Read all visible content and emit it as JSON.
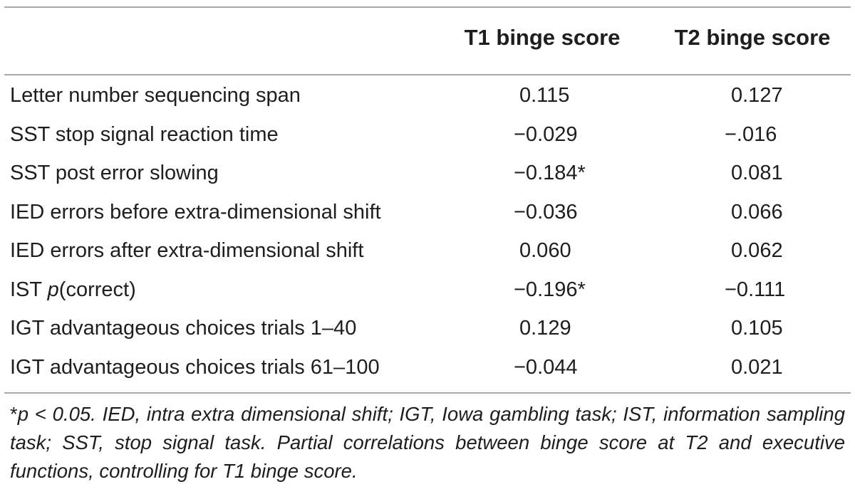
{
  "table": {
    "headers": {
      "label": "",
      "t1": "T1 binge score",
      "t2": "T2 binge score"
    },
    "rows": [
      {
        "label_pre": "Letter number sequencing span",
        "label_italic": "",
        "label_post": "",
        "t1": "0.115",
        "t2": "0.127"
      },
      {
        "label_pre": "SST stop signal reaction time",
        "label_italic": "",
        "label_post": "",
        "t1": "−0.029",
        "t2": "−.016"
      },
      {
        "label_pre": "SST post error slowing",
        "label_italic": "",
        "label_post": "",
        "t1": "−0.184*",
        "t2": "0.081"
      },
      {
        "label_pre": "IED errors before extra-dimensional shift",
        "label_italic": "",
        "label_post": "",
        "t1": "−0.036",
        "t2": "0.066"
      },
      {
        "label_pre": "IED errors after extra-dimensional shift",
        "label_italic": "",
        "label_post": "",
        "t1": "0.060",
        "t2": "0.062"
      },
      {
        "label_pre": "IST ",
        "label_italic": "p",
        "label_post": "(correct)",
        "t1": "−0.196*",
        "t2": "−0.111"
      },
      {
        "label_pre": "IGT advantageous choices trials 1–40",
        "label_italic": "",
        "label_post": "",
        "t1": "0.129",
        "t2": "0.105"
      },
      {
        "label_pre": "IGT advantageous choices trials 61–100",
        "label_italic": "",
        "label_post": "",
        "t1": "−0.044",
        "t2": "0.021"
      }
    ]
  },
  "footnote": {
    "asterisk": "*",
    "text": "p < 0.05. IED, intra extra dimensional shift; IGT, Iowa gambling task; IST, information sampling task; SST, stop signal task. Partial correlations between binge score at T2 and executive functions, controlling for T1 binge score."
  }
}
